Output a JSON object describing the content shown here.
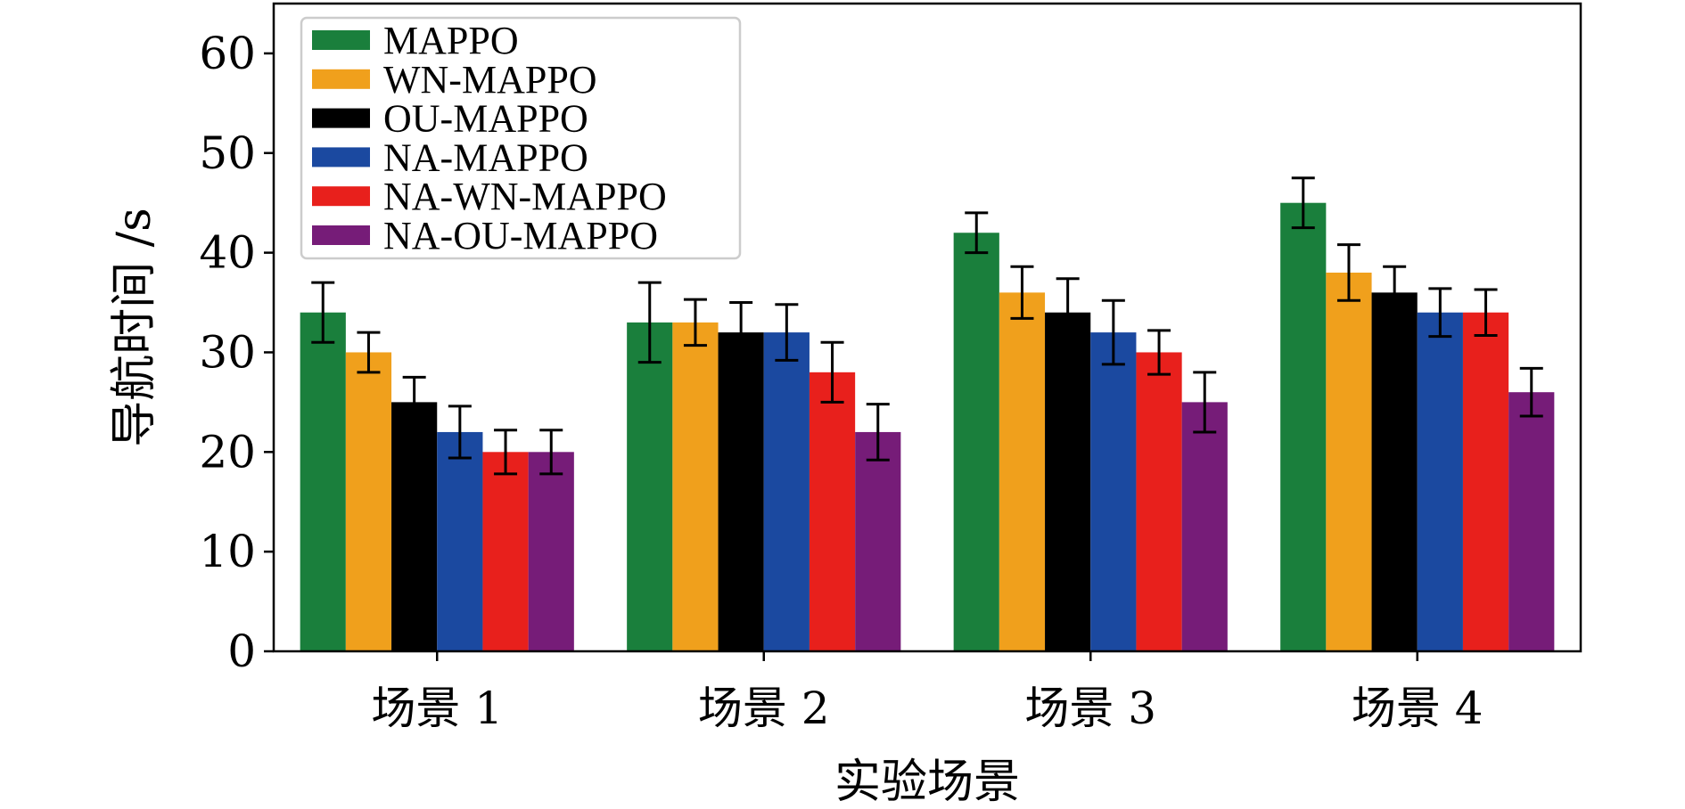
{
  "chart_data": {
    "type": "bar",
    "title": "",
    "xlabel": "实验场景",
    "ylabel": "导航时间 /s",
    "ylim": [
      0,
      65
    ],
    "yticks": [
      0,
      10,
      20,
      30,
      40,
      50,
      60
    ],
    "grid": false,
    "legend_position": "top-left",
    "categories": [
      "场景 1",
      "场景 2",
      "场景 3",
      "场景 4"
    ],
    "error_bars": true,
    "series": [
      {
        "name": "MAPPO",
        "color": "#1a7f3c",
        "values": [
          34,
          33,
          42,
          45
        ],
        "errors": [
          3.0,
          4.0,
          2.0,
          2.5
        ]
      },
      {
        "name": "WN-MAPPO",
        "color": "#f0a01c",
        "values": [
          30,
          33,
          36,
          38
        ],
        "errors": [
          2.0,
          2.3,
          2.6,
          2.8
        ]
      },
      {
        "name": "OU-MAPPO",
        "color": "#000000",
        "values": [
          25,
          32,
          34,
          36
        ],
        "errors": [
          2.5,
          3.0,
          3.4,
          2.6
        ]
      },
      {
        "name": "NA-MAPPO",
        "color": "#1b49a0",
        "values": [
          22,
          32,
          32,
          34
        ],
        "errors": [
          2.6,
          2.8,
          3.2,
          2.4
        ]
      },
      {
        "name": "NA-WN-MAPPO",
        "color": "#e8201c",
        "values": [
          20,
          28,
          30,
          34
        ],
        "errors": [
          2.2,
          3.0,
          2.2,
          2.3
        ]
      },
      {
        "name": "NA-OU-MAPPO",
        "color": "#761c78",
        "values": [
          20,
          22,
          25,
          26
        ],
        "errors": [
          2.2,
          2.8,
          3.0,
          2.4
        ]
      }
    ]
  }
}
